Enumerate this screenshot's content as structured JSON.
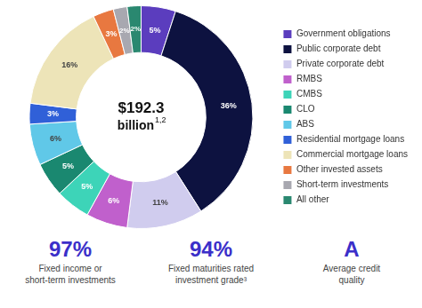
{
  "chart_data": {
    "type": "doughnut",
    "categories": [
      "Government obligations",
      "Public corporate debt",
      "Private corporate debt",
      "RMBS",
      "CMBS",
      "CLO",
      "ABS",
      "Residential mortgage loans",
      "Commercial mortgage loans",
      "Other invested assets",
      "Short-term investments",
      "All other"
    ],
    "values": [
      5,
      36,
      11,
      6,
      5,
      5,
      6,
      3,
      16,
      3,
      2,
      2
    ],
    "value_labels": [
      "5%",
      "36%",
      "11%",
      "6%",
      "5%",
      "5%",
      "6%",
      "3%",
      "16%",
      "3%",
      "2%",
      "2%"
    ],
    "colors": [
      "#5B3DBE",
      "#0D1240",
      "#D0CCEE",
      "#C060CC",
      "#3DD4B8",
      "#1A8870",
      "#60C8E8",
      "#3060D8",
      "#EDE4B8",
      "#E87840",
      "#A8A8B0",
      "#2A8870"
    ],
    "data_labels": true,
    "legend": "right",
    "annotations": [
      "$192.3",
      "billion",
      "1,2",
      "97%",
      "Fixed income or\nshort-term investments",
      "94%",
      "Fixed maturities rated\ninvestment grade³",
      "A",
      "Average credit\nquality"
    ]
  }
}
